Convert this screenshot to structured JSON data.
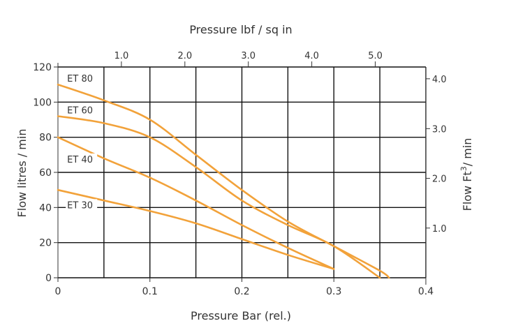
{
  "chart_data": {
    "type": "line",
    "xlabel": "Pressure Bar (rel.)",
    "ylabel": "Flow litres / min",
    "top_xlabel": "Pressure lbf / sq in",
    "right_ylabel_main": "Flow  Ft",
    "right_ylabel_sup": "3",
    "right_ylabel_tail": "/ min",
    "xlim": [
      0,
      0.4
    ],
    "ylim": [
      0,
      120
    ],
    "x_ticks": [
      0,
      0.1,
      0.2,
      0.3,
      0.4
    ],
    "x_tick_labels": [
      "0",
      "0.1",
      "0.2",
      "0.3",
      "0.4"
    ],
    "y_ticks": [
      0,
      20,
      40,
      60,
      80,
      100,
      120
    ],
    "y_tick_labels": [
      "0",
      "20",
      "40",
      "60",
      "80",
      "100",
      "120"
    ],
    "x_gridlines": [
      0.05,
      0.1,
      0.15,
      0.2,
      0.25,
      0.3,
      0.35,
      0.4
    ],
    "y_gridlines": [
      0,
      20,
      40,
      60,
      80,
      100,
      120
    ],
    "top_ticks": [
      {
        "label": "1.0",
        "bar": 0.069
      },
      {
        "label": "2.0",
        "bar": 0.138
      },
      {
        "label": "3.0",
        "bar": 0.207
      },
      {
        "label": "4.0",
        "bar": 0.276
      },
      {
        "label": "5.0",
        "bar": 0.345
      }
    ],
    "right_ticks": [
      {
        "label": "1.0",
        "flow_lpm": 28.3
      },
      {
        "label": "2.0",
        "flow_lpm": 56.6
      },
      {
        "label": "3.0",
        "flow_lpm": 84.9
      },
      {
        "label": "4.0",
        "flow_lpm": 113.3
      }
    ],
    "grid": true,
    "line_color": "#f2a23a",
    "series": [
      {
        "name": "ET 80",
        "x": [
          0,
          0.05,
          0.1,
          0.15,
          0.2,
          0.25,
          0.3,
          0.35,
          0.36
        ],
        "y": [
          110,
          101,
          90,
          70,
          50,
          32,
          18,
          4,
          0
        ],
        "label_at": {
          "x": 0.01,
          "y": 112
        }
      },
      {
        "name": "ET 60",
        "x": [
          0,
          0.05,
          0.1,
          0.15,
          0.2,
          0.25,
          0.3,
          0.35
        ],
        "y": [
          92,
          88,
          80,
          63,
          44,
          30,
          18,
          0
        ],
        "label_at": {
          "x": 0.01,
          "y": 94
        }
      },
      {
        "name": "ET 40",
        "x": [
          0,
          0.05,
          0.1,
          0.15,
          0.2,
          0.25,
          0.3
        ],
        "y": [
          80,
          68,
          57,
          44,
          30,
          17,
          5
        ],
        "label_at": {
          "x": 0.01,
          "y": 66
        }
      },
      {
        "name": "ET 30",
        "x": [
          0,
          0.05,
          0.1,
          0.15,
          0.2,
          0.25,
          0.3
        ],
        "y": [
          50,
          44,
          38,
          31,
          22,
          13,
          5
        ],
        "label_at": {
          "x": 0.01,
          "y": 40
        }
      }
    ]
  }
}
